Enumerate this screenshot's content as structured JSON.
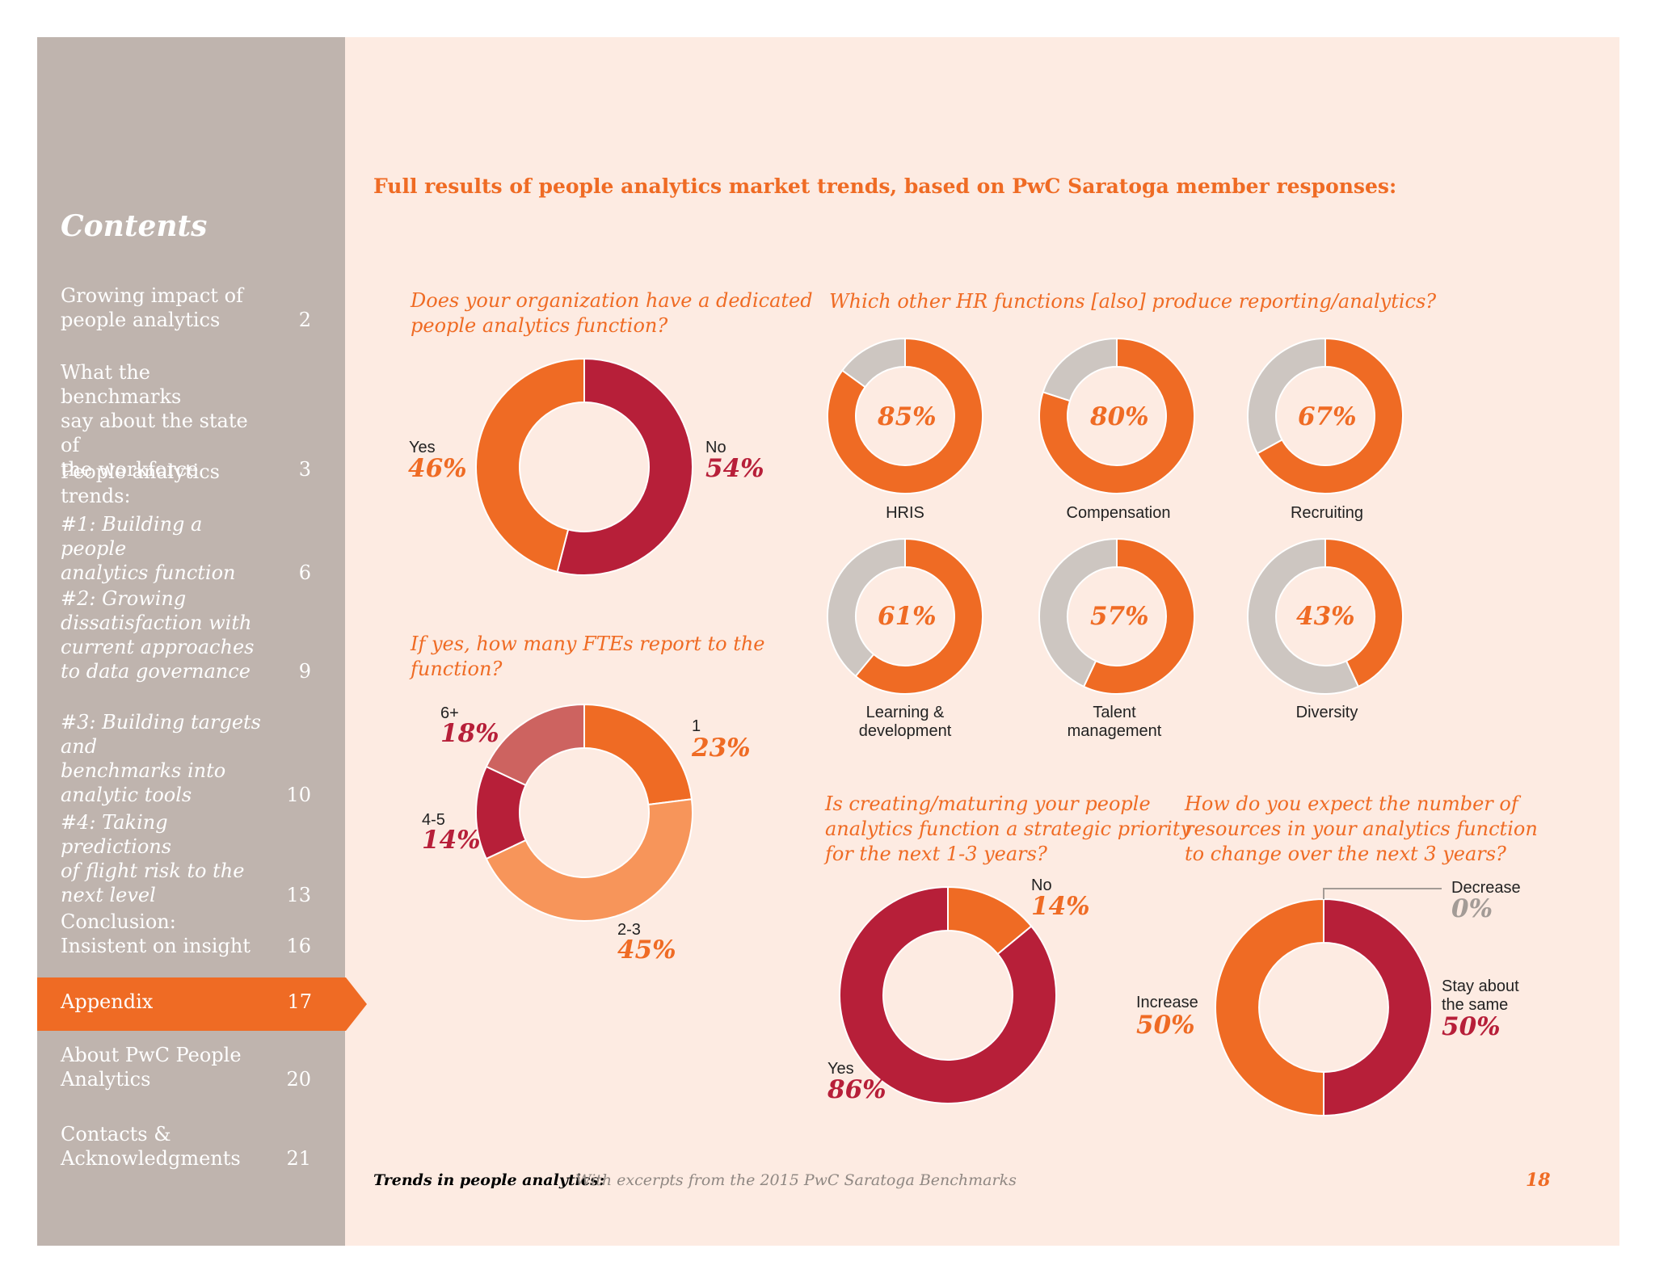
{
  "sidebar": {
    "title": "Contents",
    "items": [
      {
        "label": "Growing impact of\npeople analytics",
        "page": "2"
      },
      {
        "label": "What the benchmarks\nsay about the state of\nthe workforce",
        "page": "3"
      },
      {
        "label": "People analytics trends:",
        "page": ""
      },
      {
        "label": "#1: Building a people\nanalytics function",
        "page": "6"
      },
      {
        "label": "#2: Growing\ndissatisfaction with\ncurrent approaches\nto data governance",
        "page": "9"
      },
      {
        "label": "#3: Building targets and\nbenchmarks into\nanalytic tools",
        "page": "10"
      },
      {
        "label": "#4: Taking predictions\nof flight risk to the\nnext level",
        "page": "13"
      },
      {
        "label": "Conclusion:\nInsistent on insight",
        "page": "16"
      },
      {
        "label": "Appendix",
        "page": "17"
      },
      {
        "label": "About PwC People\nAnalytics",
        "page": "20"
      },
      {
        "label": "Contacts &\nAcknowledgments",
        "page": "21"
      }
    ]
  },
  "main": {
    "headline": "Full results of people analytics market trends, based on PwC Saratoga member responses:"
  },
  "colors": {
    "orange": "#ef6b24",
    "red": "#b71f39",
    "light_orange": "#f7955a",
    "rose": "#cd6360",
    "grey": "#cdc6c1",
    "page_bg": "#fdebe2",
    "sidebar_bg": "#bfb4ae"
  },
  "chart_data": [
    {
      "type": "pie",
      "title": "Does your organization have a dedicated\npeople analytics function?",
      "slices": [
        {
          "label": "No",
          "value": 54,
          "display": "54%"
        },
        {
          "label": "Yes",
          "value": 46,
          "display": "46%"
        }
      ]
    },
    {
      "type": "pie",
      "title": "If yes, how many FTEs report to the\n function?",
      "slices": [
        {
          "label": "1",
          "value": 23,
          "display": "23%"
        },
        {
          "label": "2-3",
          "value": 45,
          "display": "45%"
        },
        {
          "label": "4-5",
          "value": 14,
          "display": "14%"
        },
        {
          "label": "6+",
          "value": 18,
          "display": "18%"
        }
      ]
    },
    {
      "type": "pie",
      "title": "Which other HR functions [also] produce reporting/analytics?",
      "items": [
        {
          "label": "HRIS",
          "value": 85,
          "display": "85%"
        },
        {
          "label": "Compensation",
          "value": 80,
          "display": "80%"
        },
        {
          "label": "Recruiting",
          "value": 67,
          "display": "67%"
        },
        {
          "label": "Learning &\ndevelopment",
          "value": 61,
          "display": "61%"
        },
        {
          "label": "Talent\nmanagement",
          "value": 57,
          "display": "57%"
        },
        {
          "label": "Diversity",
          "value": 43,
          "display": "43%"
        }
      ]
    },
    {
      "type": "pie",
      "title": "Is creating/maturing your people\nanalytics function a strategic priority\nfor the next 1-3 years?",
      "slices": [
        {
          "label": "No",
          "value": 14,
          "display": "14%"
        },
        {
          "label": "Yes",
          "value": 86,
          "display": "86%"
        }
      ]
    },
    {
      "type": "pie",
      "title": "How do you expect the number of\nresources in your analytics function\nto change over the next 3 years?",
      "slices": [
        {
          "label": "Decrease",
          "value": 0,
          "display": "0%"
        },
        {
          "label": "Stay about\nthe same",
          "value": 50,
          "display": "50%"
        },
        {
          "label": "Increase",
          "value": 50,
          "display": "50%"
        }
      ]
    }
  ],
  "footer": {
    "title": "Trends in people analytics:",
    "subtitle": "With excerpts from the 2015 PwC Saratoga Benchmarks",
    "page_number": "18"
  }
}
